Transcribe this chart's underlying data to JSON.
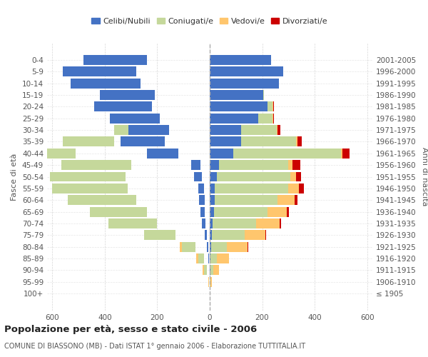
{
  "age_groups": [
    "100+",
    "95-99",
    "90-94",
    "85-89",
    "80-84",
    "75-79",
    "70-74",
    "65-69",
    "60-64",
    "55-59",
    "50-54",
    "45-49",
    "40-44",
    "35-39",
    "30-34",
    "25-29",
    "20-24",
    "15-19",
    "10-14",
    "5-9",
    "0-4"
  ],
  "birth_years": [
    "≤ 1905",
    "1906-1910",
    "1911-1915",
    "1916-1920",
    "1921-1925",
    "1926-1930",
    "1931-1935",
    "1936-1940",
    "1941-1945",
    "1946-1950",
    "1951-1955",
    "1956-1960",
    "1961-1965",
    "1966-1970",
    "1971-1975",
    "1976-1980",
    "1981-1985",
    "1986-1990",
    "1991-1995",
    "1996-2000",
    "2001-2005"
  ],
  "male": {
    "celibi": [
      0,
      0,
      2,
      3,
      5,
      10,
      15,
      18,
      20,
      22,
      30,
      35,
      120,
      170,
      155,
      190,
      220,
      210,
      265,
      280,
      240
    ],
    "coniugati": [
      0,
      2,
      10,
      20,
      50,
      120,
      185,
      220,
      260,
      290,
      290,
      265,
      390,
      195,
      105,
      35,
      10,
      2,
      0,
      0,
      0
    ],
    "vedovi": [
      0,
      2,
      8,
      15,
      30,
      15,
      20,
      10,
      5,
      5,
      5,
      0,
      0,
      0,
      0,
      5,
      5,
      0,
      0,
      0,
      0
    ],
    "divorziati": [
      0,
      0,
      0,
      0,
      0,
      5,
      8,
      10,
      15,
      20,
      18,
      30,
      22,
      12,
      8,
      3,
      2,
      0,
      0,
      0,
      0
    ]
  },
  "female": {
    "nubili": [
      0,
      0,
      2,
      3,
      5,
      8,
      12,
      15,
      18,
      20,
      28,
      35,
      90,
      120,
      120,
      185,
      220,
      205,
      265,
      280,
      235
    ],
    "coniugate": [
      0,
      3,
      12,
      25,
      60,
      125,
      165,
      205,
      240,
      280,
      280,
      265,
      410,
      210,
      135,
      55,
      20,
      2,
      0,
      0,
      0
    ],
    "vedove": [
      0,
      5,
      20,
      45,
      80,
      80,
      90,
      75,
      65,
      40,
      20,
      15,
      5,
      5,
      3,
      2,
      2,
      0,
      0,
      0,
      0
    ],
    "divorziate": [
      0,
      0,
      0,
      0,
      2,
      2,
      5,
      8,
      12,
      20,
      20,
      30,
      28,
      15,
      10,
      3,
      2,
      0,
      0,
      0,
      0
    ]
  },
  "colors": {
    "celibi": "#4472c4",
    "coniugati": "#c5d89b",
    "vedovi": "#ffc66d",
    "divorziati": "#cc0000"
  },
  "xlim": 620,
  "title": "Popolazione per età, sesso e stato civile - 2006",
  "subtitle": "COMUNE DI BIASSONO (MB) - Dati ISTAT 1° gennaio 2006 - Elaborazione TUTTITALIA.IT",
  "ylabel_left": "Fasce di età",
  "ylabel_right": "Anni di nascita",
  "legend_labels": [
    "Celibi/Nubili",
    "Coniugati/e",
    "Vedovi/e",
    "Divorziati/e"
  ],
  "bg_color": "#ffffff",
  "grid_color": "#cccccc"
}
